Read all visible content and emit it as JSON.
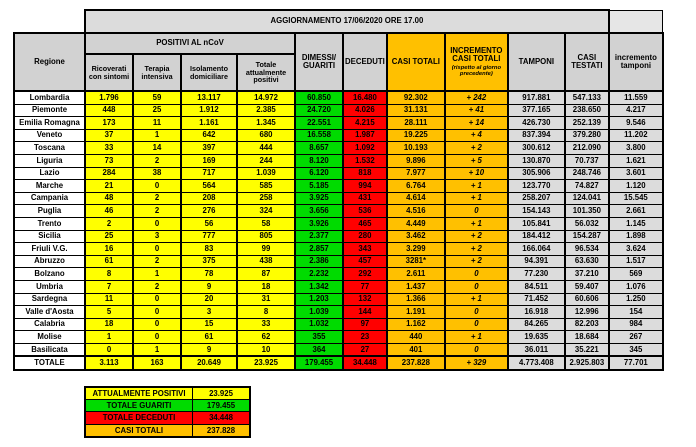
{
  "colors": {
    "positivi_yellow": "#FFFF00",
    "guariti_green": "#00DB00",
    "deceduti_red": "#FF0000",
    "casi_orange": "#FFC000",
    "tamponi_gray": "#DCDCDC",
    "header_gray": "#D2D2D2",
    "border_black": "#000000",
    "deceduti_text": "#8B0000",
    "guariti_text": "#0B4A0B"
  },
  "table_header": {
    "banner": "AGGIORNAMENTO 17/06/2020 ORE 17.00",
    "regione": "Regione",
    "positivi_group": "POSITIVI AL nCoV",
    "sub_ricoverati": "Ricoverati con sintomi",
    "sub_terapia": "Terapia intensiva",
    "sub_isolamento": "Isolamento domiciliare",
    "sub_totale_positivi": "Totale attualmente positivi",
    "dimessi": "DIMESSI/ GUARITI",
    "deceduti": "DECEDUTI",
    "casi_totali": "CASI TOTALI",
    "incremento_casi": "INCREMENTO CASI TOTALI",
    "incremento_casi_note": "(rispetto al giorno precedente)",
    "tamponi": "TAMPONI",
    "casi_testati": "CASI TESTATI",
    "incremento_tamponi": "incremento tamponi"
  },
  "chart_data": {
    "type": "table",
    "title": "AGGIORNAMENTO 17/06/2020 ORE 17.00",
    "columns": [
      "Regione",
      "Ricoverati con sintomi",
      "Terapia intensiva",
      "Isolamento domiciliare",
      "Totale attualmente positivi",
      "DIMESSI/ GUARITI",
      "DECEDUTI",
      "CASI TOTALI",
      "INCREMENTO CASI TOTALI (rispetto al giorno precedente)",
      "TAMPONI",
      "CASI TESTATI",
      "incremento tamponi"
    ],
    "rows": [
      [
        "Lombardia",
        "1.796",
        "59",
        "13.117",
        "14.972",
        "60.850",
        "16.480",
        "92.302",
        "+ 242",
        "917.881",
        "547.133",
        "11.559"
      ],
      [
        "Piemonte",
        "448",
        "25",
        "1.912",
        "2.385",
        "24.720",
        "4.026",
        "31.131",
        "+ 41",
        "377.165",
        "238.650",
        "4.217"
      ],
      [
        "Emilia Romagna",
        "173",
        "11",
        "1.161",
        "1.345",
        "22.551",
        "4.215",
        "28.111",
        "+ 14",
        "426.730",
        "252.139",
        "9.546"
      ],
      [
        "Veneto",
        "37",
        "1",
        "642",
        "680",
        "16.558",
        "1.987",
        "19.225",
        "+ 4",
        "837.394",
        "379.280",
        "11.202"
      ],
      [
        "Toscana",
        "33",
        "14",
        "397",
        "444",
        "8.657",
        "1.092",
        "10.193",
        "+ 2",
        "300.612",
        "212.090",
        "3.800"
      ],
      [
        "Liguria",
        "73",
        "2",
        "169",
        "244",
        "8.120",
        "1.532",
        "9.896",
        "+ 5",
        "130.870",
        "70.737",
        "1.621"
      ],
      [
        "Lazio",
        "284",
        "38",
        "717",
        "1.039",
        "6.120",
        "818",
        "7.977",
        "+ 10",
        "305.906",
        "248.746",
        "3.601"
      ],
      [
        "Marche",
        "21",
        "0",
        "564",
        "585",
        "5.185",
        "994",
        "6.764",
        "+ 1",
        "123.770",
        "74.827",
        "1.120"
      ],
      [
        "Campania",
        "48",
        "2",
        "208",
        "258",
        "3.925",
        "431",
        "4.614",
        "+ 1",
        "258.207",
        "124.041",
        "15.545"
      ],
      [
        "Puglia",
        "46",
        "2",
        "276",
        "324",
        "3.656",
        "536",
        "4.516",
        "0",
        "154.143",
        "101.350",
        "2.661"
      ],
      [
        "Trento",
        "2",
        "0",
        "56",
        "58",
        "3.926",
        "465",
        "4.449",
        "+ 1",
        "105.841",
        "56.032",
        "1.145"
      ],
      [
        "Sicilia",
        "25",
        "3",
        "777",
        "805",
        "2.377",
        "280",
        "3.462",
        "+ 2",
        "184.412",
        "154.287",
        "1.898"
      ],
      [
        "Friuli V.G.",
        "16",
        "0",
        "83",
        "99",
        "2.857",
        "343",
        "3.299",
        "+ 2",
        "166.064",
        "96.534",
        "3.624"
      ],
      [
        "Abruzzo",
        "61",
        "2",
        "375",
        "438",
        "2.386",
        "457",
        "3281*",
        "+ 2",
        "94.391",
        "63.630",
        "1.517"
      ],
      [
        "Bolzano",
        "8",
        "1",
        "78",
        "87",
        "2.232",
        "292",
        "2.611",
        "0",
        "77.230",
        "37.210",
        "569"
      ],
      [
        "Umbria",
        "7",
        "2",
        "9",
        "18",
        "1.342",
        "77",
        "1.437",
        "0",
        "84.511",
        "59.407",
        "1.076"
      ],
      [
        "Sardegna",
        "11",
        "0",
        "20",
        "31",
        "1.203",
        "132",
        "1.366",
        "+ 1",
        "71.452",
        "60.606",
        "1.250"
      ],
      [
        "Valle d'Aosta",
        "5",
        "0",
        "3",
        "8",
        "1.039",
        "144",
        "1.191",
        "0",
        "16.918",
        "12.996",
        "154"
      ],
      [
        "Calabria",
        "18",
        "0",
        "15",
        "33",
        "1.032",
        "97",
        "1.162",
        "0",
        "84.265",
        "82.203",
        "984"
      ],
      [
        "Molise",
        "1",
        "0",
        "61",
        "62",
        "355",
        "23",
        "440",
        "+ 1",
        "19.635",
        "18.684",
        "267"
      ],
      [
        "Basilicata",
        "0",
        "1",
        "9",
        "10",
        "364",
        "27",
        "401",
        "0",
        "36.011",
        "35.221",
        "345"
      ]
    ],
    "total_row": [
      "TOTALE",
      "3.113",
      "163",
      "20.649",
      "23.925",
      "179.455",
      "34.448",
      "237.828",
      "+ 329",
      "4.773.408",
      "2.925.803",
      "77.701"
    ]
  },
  "summary": {
    "rows": [
      {
        "label": "ATTUALMENTE POSITIVI",
        "value": "23.925"
      },
      {
        "label": "TOTALE GUARITI",
        "value": "179.455"
      },
      {
        "label": "TOTALE DECEDUTI",
        "value": "34.448"
      },
      {
        "label": "CASI TOTALI",
        "value": "237.828"
      }
    ]
  }
}
